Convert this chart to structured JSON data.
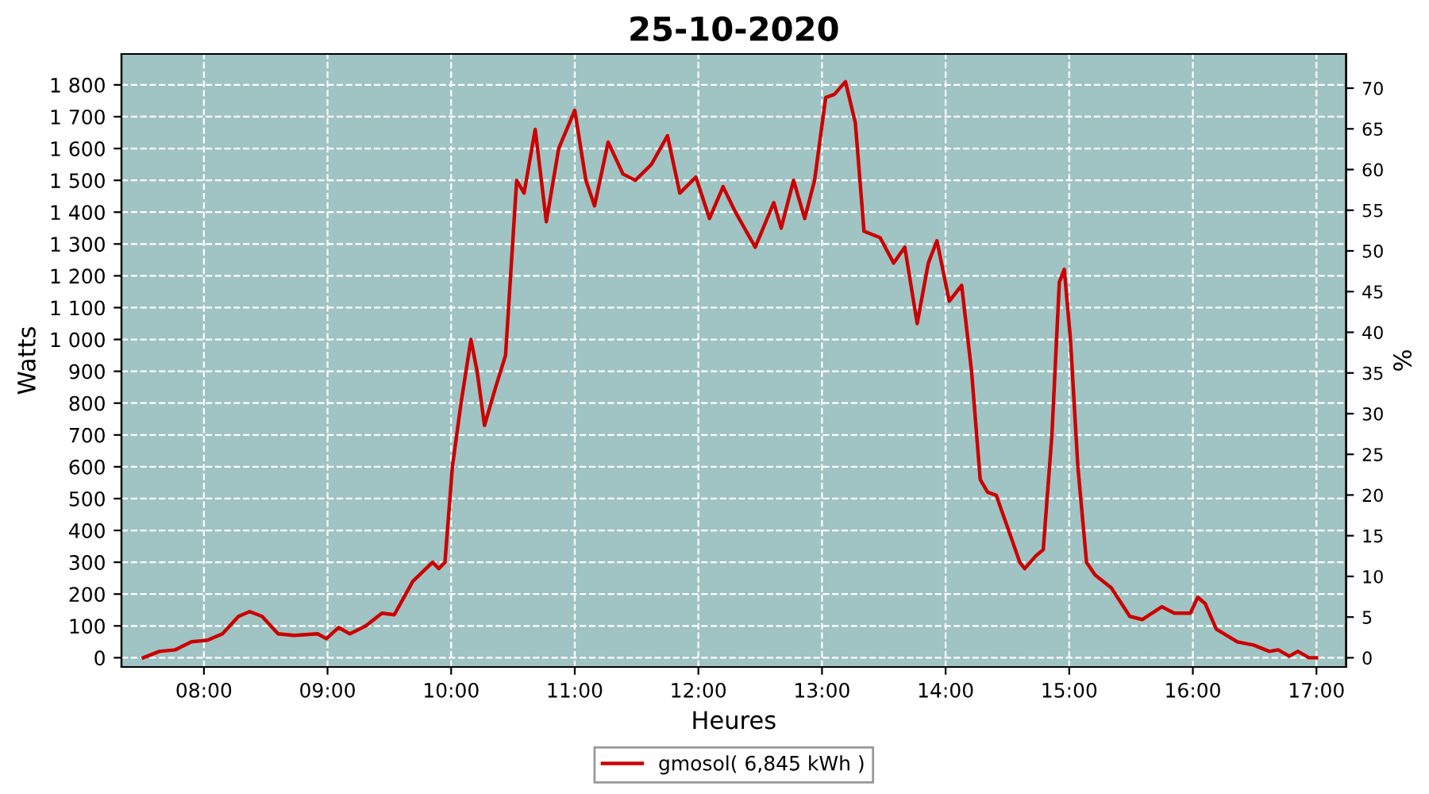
{
  "chart_data": {
    "type": "line",
    "title": "25-10-2020",
    "xlabel": "Heures",
    "ylabel": "Watts",
    "y2label": "%",
    "x": [
      7.51,
      7.64,
      7.77,
      7.9,
      8.03,
      8.15,
      8.28,
      8.37,
      8.47,
      8.6,
      8.73,
      8.92,
      8.99,
      9.09,
      9.18,
      9.31,
      9.44,
      9.54,
      9.69,
      9.85,
      9.9,
      9.95,
      10.01,
      10.08,
      10.16,
      10.21,
      10.27,
      10.36,
      10.44,
      10.53,
      10.59,
      10.68,
      10.77,
      10.87,
      11.0,
      11.09,
      11.16,
      11.27,
      11.39,
      11.49,
      11.62,
      11.75,
      11.85,
      11.98,
      12.09,
      12.2,
      12.3,
      12.46,
      12.61,
      12.67,
      12.77,
      12.86,
      12.94,
      13.03,
      13.1,
      13.19,
      13.27,
      13.34,
      13.47,
      13.58,
      13.67,
      13.77,
      13.86,
      13.93,
      14.03,
      14.13,
      14.21,
      14.28,
      14.34,
      14.41,
      14.51,
      14.6,
      14.64,
      14.73,
      14.79,
      14.86,
      14.92,
      14.96,
      15.01,
      15.07,
      15.14,
      15.21,
      15.34,
      15.49,
      15.59,
      15.75,
      15.85,
      15.98,
      16.04,
      16.1,
      16.19,
      16.36,
      16.49,
      16.62,
      16.69,
      16.78,
      16.85,
      16.94,
      17.0
    ],
    "series": [
      {
        "name": "gmosol( 6,845 kWh )",
        "color": "#cc0000",
        "values": [
          0,
          20,
          25,
          50,
          55,
          75,
          130,
          145,
          130,
          75,
          70,
          75,
          60,
          95,
          75,
          100,
          140,
          135,
          240,
          300,
          280,
          300,
          600,
          800,
          1000,
          900,
          730,
          850,
          950,
          1500,
          1460,
          1660,
          1370,
          1600,
          1720,
          1500,
          1420,
          1620,
          1520,
          1500,
          1550,
          1640,
          1460,
          1510,
          1380,
          1480,
          1400,
          1290,
          1430,
          1350,
          1500,
          1380,
          1500,
          1760,
          1770,
          1810,
          1680,
          1340,
          1320,
          1240,
          1290,
          1050,
          1240,
          1310,
          1120,
          1170,
          900,
          560,
          520,
          510,
          400,
          300,
          280,
          320,
          340,
          700,
          1180,
          1220,
          1000,
          600,
          300,
          260,
          220,
          130,
          120,
          160,
          140,
          140,
          190,
          170,
          90,
          50,
          40,
          20,
          25,
          5,
          20,
          0,
          0
        ]
      }
    ],
    "xlim": [
      7.333,
      17.24
    ],
    "xticks": [
      {
        "value": 8,
        "label": "08:00"
      },
      {
        "value": 9,
        "label": "09:00"
      },
      {
        "value": 10,
        "label": "10:00"
      },
      {
        "value": 11,
        "label": "11:00"
      },
      {
        "value": 12,
        "label": "12:00"
      },
      {
        "value": 13,
        "label": "13:00"
      },
      {
        "value": 14,
        "label": "14:00"
      },
      {
        "value": 15,
        "label": "15:00"
      },
      {
        "value": 16,
        "label": "16:00"
      },
      {
        "value": 17,
        "label": "17:00"
      }
    ],
    "ylim": [
      -29,
      1897
    ],
    "yticks": [
      0,
      100,
      200,
      300,
      400,
      500,
      600,
      700,
      800,
      900,
      {
        "value": 1000,
        "label": "1 000"
      },
      {
        "value": 1100,
        "label": "1 100"
      },
      {
        "value": 1200,
        "label": "1 200"
      },
      {
        "value": 1300,
        "label": "1 300"
      },
      {
        "value": 1400,
        "label": "1 400"
      },
      {
        "value": 1500,
        "label": "1 500"
      },
      {
        "value": 1600,
        "label": "1 600"
      },
      {
        "value": 1700,
        "label": "1 700"
      },
      {
        "value": 1800,
        "label": "1 800"
      }
    ],
    "y2lim": [
      -1.13,
      74.2
    ],
    "y2ticks": [
      0,
      5,
      10,
      15,
      20,
      25,
      30,
      35,
      40,
      45,
      50,
      55,
      60,
      65,
      70
    ],
    "grid": true,
    "legend": "bottom",
    "marker": "none",
    "line_style": "solid"
  }
}
